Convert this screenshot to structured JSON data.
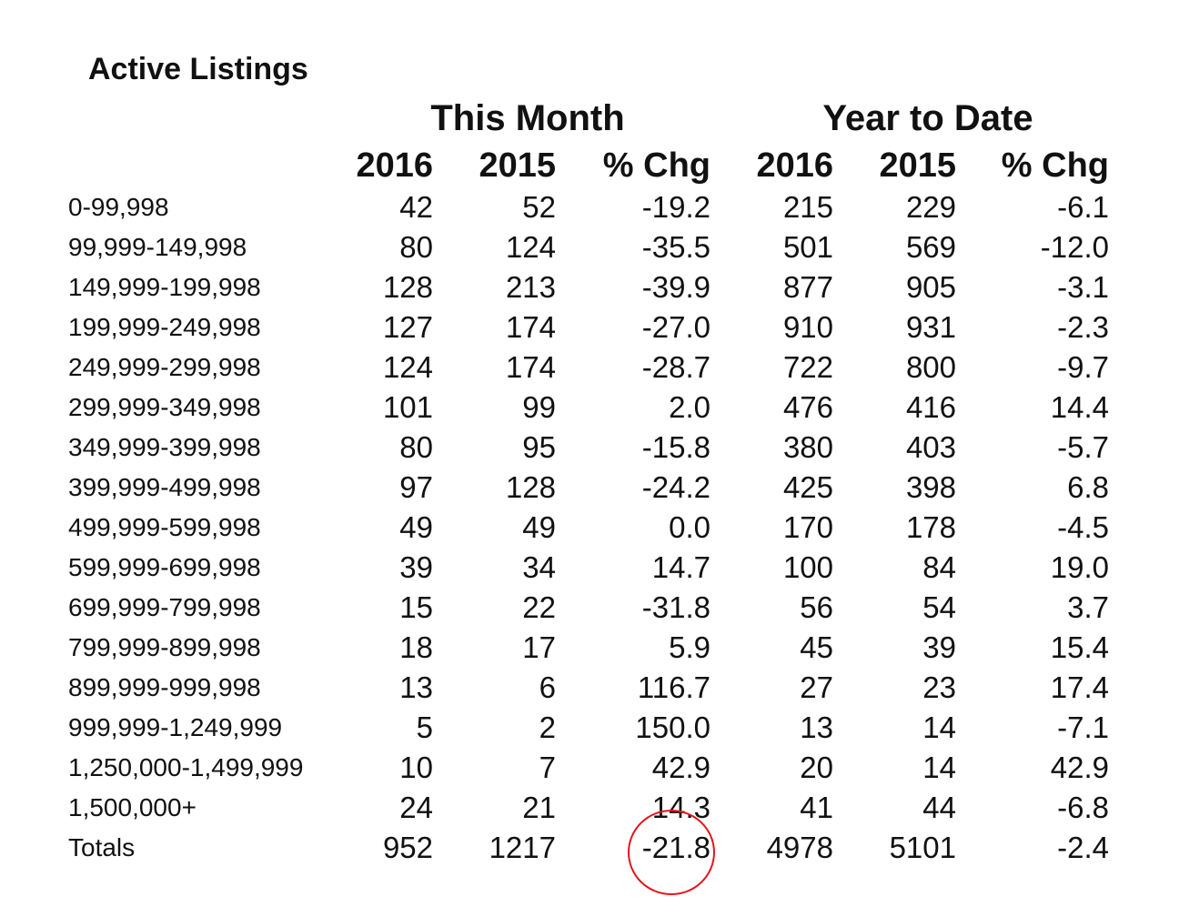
{
  "title": "Active Listings",
  "groups": {
    "this_month": "This Month",
    "year_to_date": "Year to Date"
  },
  "columns": [
    "2016",
    "2015",
    "% Chg",
    "2016",
    "2015",
    "% Chg"
  ],
  "rows": [
    {
      "label": "0-99,998",
      "v": [
        "42",
        "52",
        "-19.2",
        "215",
        "229",
        "-6.1"
      ]
    },
    {
      "label": "99,999-149,998",
      "v": [
        "80",
        "124",
        "-35.5",
        "501",
        "569",
        "-12.0"
      ]
    },
    {
      "label": "149,999-199,998",
      "v": [
        "128",
        "213",
        "-39.9",
        "877",
        "905",
        "-3.1"
      ]
    },
    {
      "label": "199,999-249,998",
      "v": [
        "127",
        "174",
        "-27.0",
        "910",
        "931",
        "-2.3"
      ]
    },
    {
      "label": "249,999-299,998",
      "v": [
        "124",
        "174",
        "-28.7",
        "722",
        "800",
        "-9.7"
      ]
    },
    {
      "label": "299,999-349,998",
      "v": [
        "101",
        "99",
        "2.0",
        "476",
        "416",
        "14.4"
      ]
    },
    {
      "label": "349,999-399,998",
      "v": [
        "80",
        "95",
        "-15.8",
        "380",
        "403",
        "-5.7"
      ]
    },
    {
      "label": "399,999-499,998",
      "v": [
        "97",
        "128",
        "-24.2",
        "425",
        "398",
        "6.8"
      ]
    },
    {
      "label": "499,999-599,998",
      "v": [
        "49",
        "49",
        "0.0",
        "170",
        "178",
        "-4.5"
      ]
    },
    {
      "label": "599,999-699,998",
      "v": [
        "39",
        "34",
        "14.7",
        "100",
        "84",
        "19.0"
      ]
    },
    {
      "label": "699,999-799,998",
      "v": [
        "15",
        "22",
        "-31.8",
        "56",
        "54",
        "3.7"
      ]
    },
    {
      "label": "799,999-899,998",
      "v": [
        "18",
        "17",
        "5.9",
        "45",
        "39",
        "15.4"
      ]
    },
    {
      "label": "899,999-999,998",
      "v": [
        "13",
        "6",
        "116.7",
        "27",
        "23",
        "17.4"
      ]
    },
    {
      "label": "999,999-1,249,999",
      "v": [
        "5",
        "2",
        "150.0",
        "13",
        "14",
        "-7.1"
      ]
    },
    {
      "label": "1,250,000-1,499,999",
      "v": [
        "10",
        "7",
        "42.9",
        "20",
        "14",
        "42.9"
      ]
    },
    {
      "label": "1,500,000+",
      "v": [
        "24",
        "21",
        "14.3",
        "41",
        "44",
        "-6.8"
      ]
    },
    {
      "label": "Totals",
      "v": [
        "952",
        "1217",
        "-21.8",
        "4978",
        "5101",
        "-2.4"
      ]
    }
  ],
  "annotation_color": "#e3141b"
}
